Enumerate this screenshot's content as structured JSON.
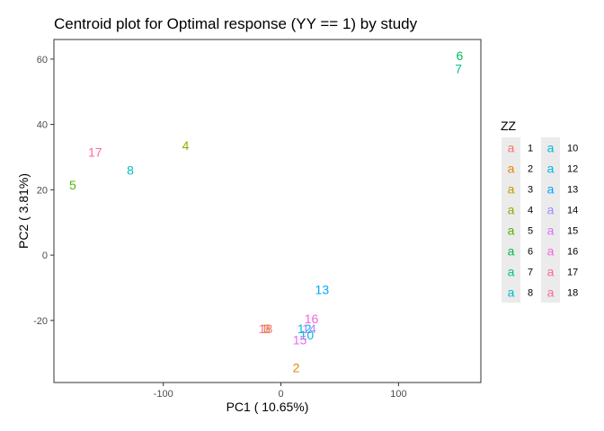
{
  "chart_data": {
    "type": "scatter",
    "title": "Centroid plot for Optimal response (YY == 1) by study",
    "xlabel": "PC1 ( 10.65%)",
    "ylabel": "PC2 ( 3.81%)",
    "xlim": [
      -193,
      170
    ],
    "ylim": [
      -39,
      66
    ],
    "xticks": [
      -100,
      0,
      100
    ],
    "yticks": [
      -20,
      0,
      20,
      40,
      60
    ],
    "xtick_labels": [
      "-100",
      "0",
      "100"
    ],
    "ytick_labels": [
      "-20",
      "0",
      "20",
      "40",
      "60"
    ],
    "legend": {
      "title": "ZZ",
      "position": "right",
      "key_glyph": "a",
      "entries": [
        "1",
        "2",
        "3",
        "4",
        "5",
        "6",
        "7",
        "8",
        "10",
        "12",
        "13",
        "14",
        "15",
        "16",
        "17",
        "18"
      ]
    },
    "points": [
      {
        "label": "1",
        "x": -14,
        "y": -22.5,
        "color": "#F8766D"
      },
      {
        "label": "2",
        "x": 13,
        "y": -34.5,
        "color": "#E38900"
      },
      {
        "label": "3",
        "x": -12,
        "y": -22.5,
        "color": "#C49A00"
      },
      {
        "label": "4",
        "x": -81,
        "y": 33.5,
        "color": "#99A800"
      },
      {
        "label": "5",
        "x": -177,
        "y": 21.5,
        "color": "#53B400"
      },
      {
        "label": "6",
        "x": 152,
        "y": 61,
        "color": "#00BC56"
      },
      {
        "label": "7",
        "x": 151,
        "y": 57,
        "color": "#00C094"
      },
      {
        "label": "8",
        "x": -128,
        "y": 26,
        "color": "#00BFC4"
      },
      {
        "label": "10",
        "x": 22,
        "y": -24.5,
        "color": "#00BAE0"
      },
      {
        "label": "12",
        "x": 20,
        "y": -22.5,
        "color": "#00B6EB"
      },
      {
        "label": "13",
        "x": 35,
        "y": -10.5,
        "color": "#06A4FF"
      },
      {
        "label": "14",
        "x": 24,
        "y": -22.5,
        "color": "#A58AFF"
      },
      {
        "label": "15",
        "x": 16,
        "y": -26,
        "color": "#DF70F8"
      },
      {
        "label": "16",
        "x": 26,
        "y": -19.5,
        "color": "#FB61D7"
      },
      {
        "label": "17",
        "x": -158,
        "y": 31.5,
        "color": "#FF66A8"
      },
      {
        "label": "18",
        "x": -13,
        "y": -22.5,
        "color": "#FF6C91"
      }
    ]
  }
}
